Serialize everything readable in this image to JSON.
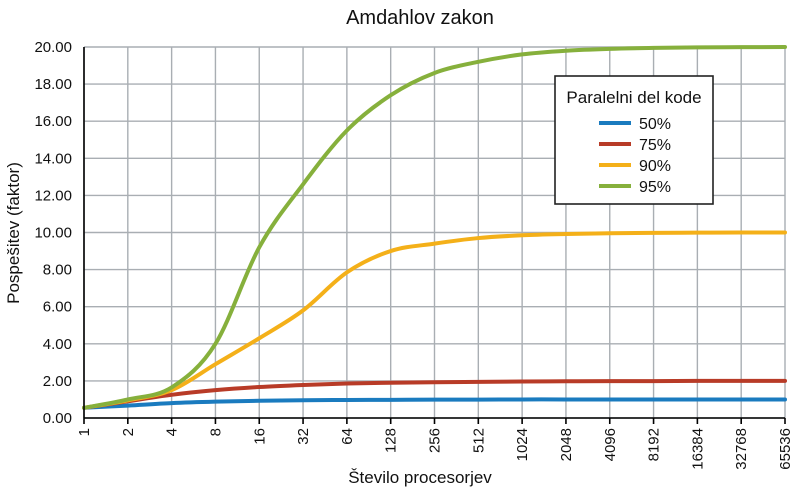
{
  "chart_data": {
    "type": "line",
    "title": "Amdahlov zakon",
    "xlabel": "Število procesorjev",
    "ylabel": "Pospešitev (faktor)",
    "x_scale": "log2",
    "x": [
      1,
      2,
      4,
      8,
      16,
      32,
      64,
      128,
      256,
      512,
      1024,
      2048,
      4096,
      8192,
      16384,
      32768,
      65536
    ],
    "x_tick_labels": [
      "1",
      "2",
      "4",
      "8",
      "16",
      "32",
      "64",
      "128",
      "256",
      "512",
      "1024",
      "2048",
      "4096",
      "8192",
      "16384",
      "32768",
      "65536"
    ],
    "ylim": [
      0,
      20
    ],
    "y_tick_labels": [
      "0.00",
      "2.00",
      "4.00",
      "6.00",
      "8.00",
      "10.00",
      "12.00",
      "14.00",
      "16.00",
      "18.00",
      "20.00"
    ],
    "y_tick_values": [
      0,
      2,
      4,
      6,
      8,
      10,
      12,
      14,
      16,
      18,
      20
    ],
    "grid": true,
    "legend": {
      "title": "Paralelni del kode",
      "placement": "top-right"
    },
    "series": [
      {
        "name": "50%",
        "color": "#1a7bbf",
        "values": [
          0.55,
          0.67,
          0.8,
          0.88,
          0.93,
          0.96,
          0.97,
          0.98,
          0.99,
          0.99,
          1.0,
          1.0,
          1.0,
          1.0,
          1.0,
          1.0,
          1.0
        ]
      },
      {
        "name": "75%",
        "color": "#b83b27",
        "values": [
          0.55,
          0.9,
          1.25,
          1.5,
          1.67,
          1.78,
          1.86,
          1.9,
          1.93,
          1.95,
          1.97,
          1.98,
          1.99,
          1.99,
          2.0,
          2.0,
          2.0
        ]
      },
      {
        "name": "90%",
        "color": "#f4b019",
        "values": [
          0.55,
          0.95,
          1.5,
          2.9,
          4.3,
          5.8,
          7.85,
          9.0,
          9.4,
          9.7,
          9.85,
          9.92,
          9.96,
          9.98,
          9.99,
          10.0,
          10.0
        ]
      },
      {
        "name": "95%",
        "color": "#86b03c",
        "values": [
          0.55,
          1.0,
          1.65,
          4.0,
          9.2,
          12.6,
          15.5,
          17.4,
          18.6,
          19.2,
          19.6,
          19.8,
          19.9,
          19.95,
          19.98,
          19.99,
          20.0
        ]
      }
    ]
  }
}
